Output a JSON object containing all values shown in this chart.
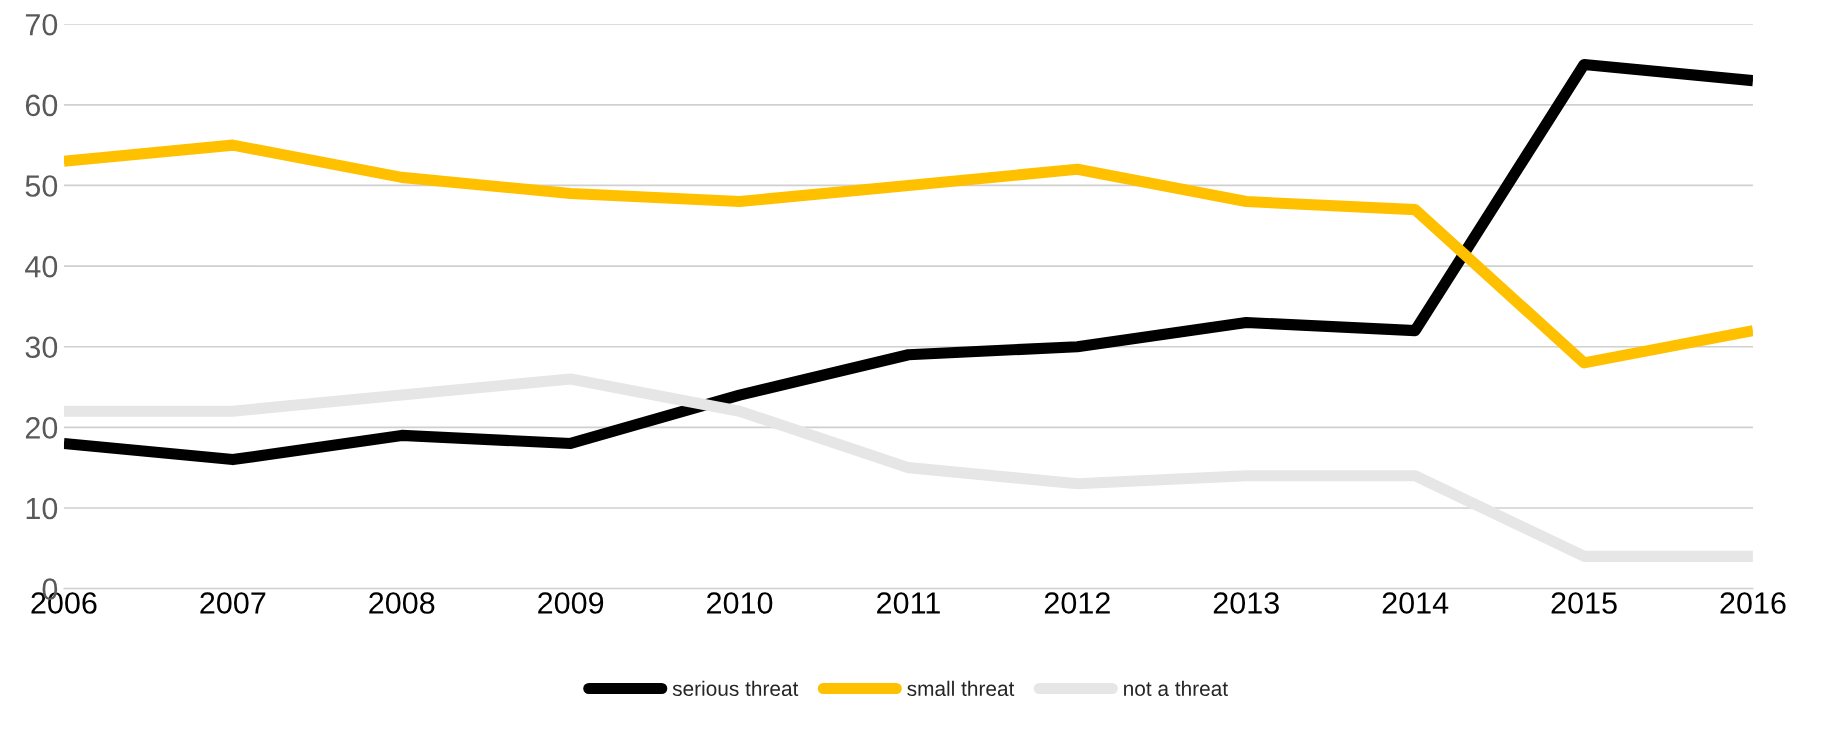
{
  "chart_data": {
    "type": "line",
    "x": [
      2006,
      2007,
      2008,
      2009,
      2010,
      2011,
      2012,
      2013,
      2014,
      2015,
      2016
    ],
    "series": [
      {
        "name": "serious threat",
        "color": "#000000",
        "values": [
          18,
          16,
          19,
          18,
          24,
          29,
          30,
          33,
          32,
          65,
          63
        ]
      },
      {
        "name": "small threat",
        "color": "#ffc000",
        "values": [
          53,
          55,
          51,
          49,
          48,
          50,
          52,
          48,
          47,
          28,
          32
        ]
      },
      {
        "name": "not a threat",
        "color": "#e6e6e6",
        "values": [
          22,
          22,
          24,
          26,
          22,
          15,
          13,
          14,
          14,
          4,
          4
        ]
      }
    ],
    "xlim": [
      2006,
      2016
    ],
    "xticks": [
      2006,
      2007,
      2008,
      2009,
      2010,
      2011,
      2012,
      2013,
      2014,
      2015,
      2016
    ],
    "ylim": [
      0,
      70
    ],
    "yticks": [
      0,
      10,
      20,
      30,
      40,
      50,
      60,
      70
    ],
    "grid": "y",
    "legend": "bottom",
    "marker": "none",
    "line_style": "solid"
  }
}
